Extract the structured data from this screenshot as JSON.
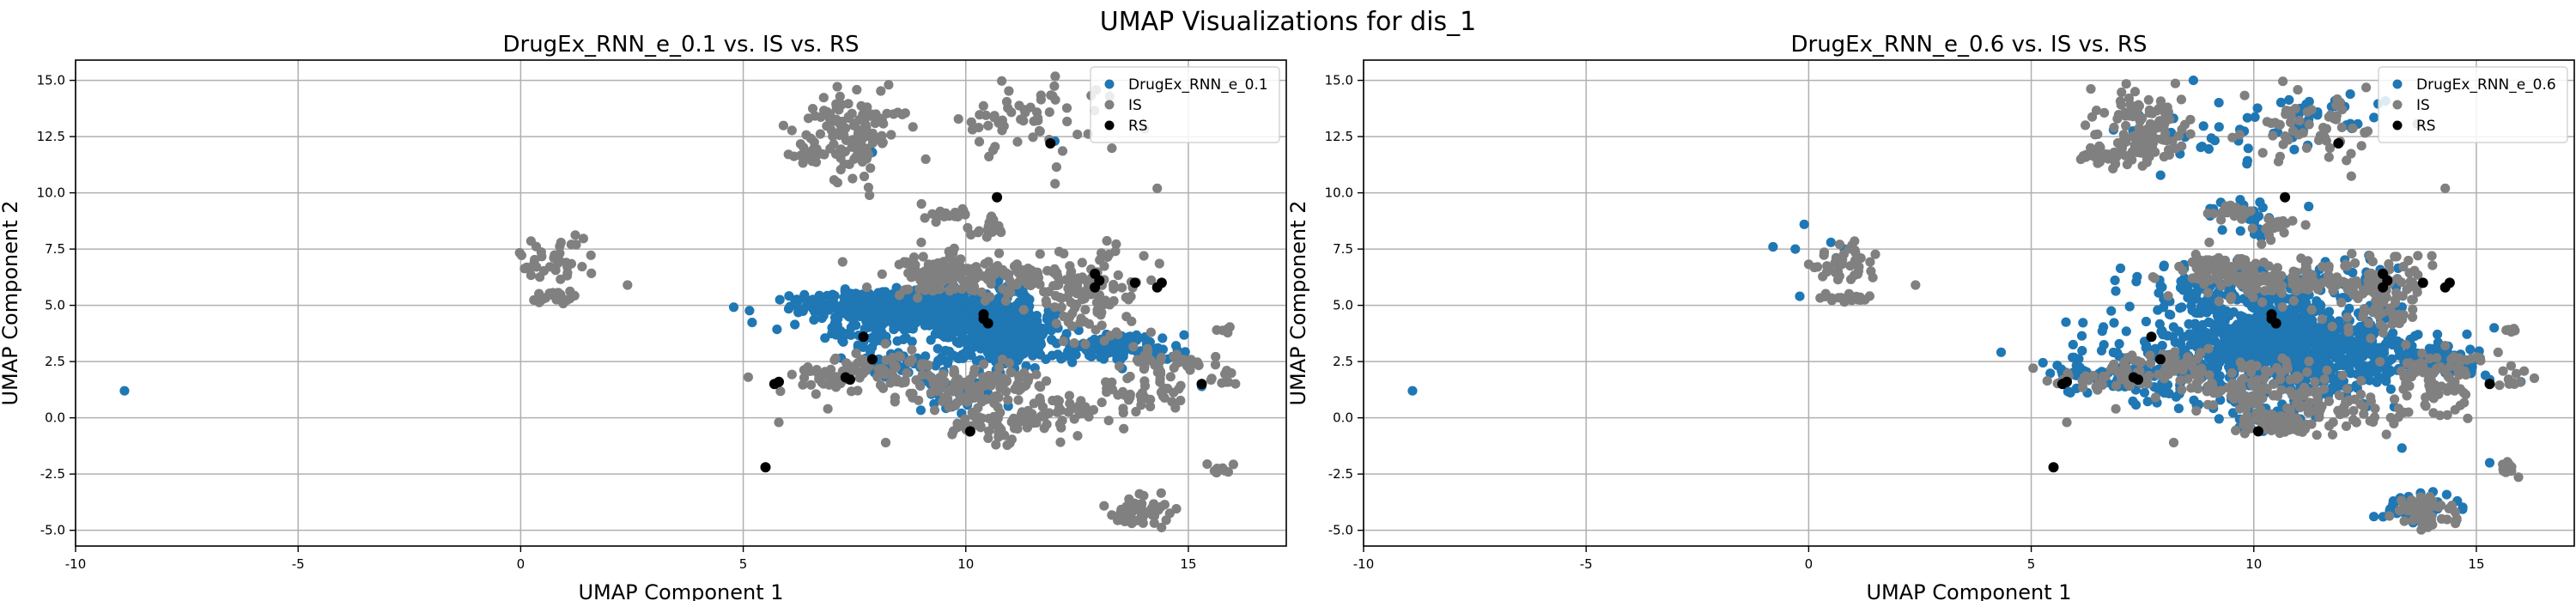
{
  "figure": {
    "suptitle": "UMAP Visualizations for dis_1"
  },
  "chart_data": [
    {
      "type": "scatter",
      "title": "DrugEx_RNN_e_0.1 vs. IS vs. RS",
      "xlabel": "UMAP Component 1",
      "ylabel": "UMAP Component 2",
      "xlim": [
        -10,
        17.2
      ],
      "ylim": [
        -5.7,
        15.9
      ],
      "xticks": [
        -10,
        -5,
        0,
        5,
        10,
        15
      ],
      "yticks": [
        -5.0,
        -2.5,
        0.0,
        2.5,
        5.0,
        7.5,
        10.0,
        12.5,
        15.0
      ],
      "grid": true,
      "legend_position": "top-right",
      "series": [
        {
          "name": "DrugEx_RNN_e_0.1",
          "color": "#1f77b4",
          "clusters": [
            {
              "cx": 10.8,
              "cy": 3.9,
              "sx": 0.55,
              "sy": 0.75,
              "n": 500
            },
            {
              "cx": 9.3,
              "cy": 4.6,
              "sx": 0.9,
              "sy": 0.55,
              "n": 260
            },
            {
              "cx": 8.3,
              "cy": 5.1,
              "sx": 1.1,
              "sy": 0.35,
              "n": 200
            },
            {
              "cx": 7.5,
              "cy": 4.8,
              "sx": 1.1,
              "sy": 0.45,
              "n": 90
            },
            {
              "cx": 13.3,
              "cy": 3.1,
              "sx": 0.75,
              "sy": 0.35,
              "n": 110
            },
            {
              "cx": 8.7,
              "cy": 2.4,
              "sx": 0.7,
              "sy": 0.3,
              "n": 50
            },
            {
              "cx": 9.9,
              "cy": 1.0,
              "sx": 0.6,
              "sy": 0.4,
              "n": 30
            },
            {
              "cx": 7.6,
              "cy": 3.5,
              "sx": 0.4,
              "sy": 0.3,
              "n": 30
            }
          ],
          "points": [
            [
              -8.9,
              1.2
            ],
            [
              7.6,
              11.7
            ],
            [
              7.9,
              11.8
            ],
            [
              12.0,
              12.3
            ],
            [
              15.3,
              1.4
            ]
          ]
        },
        {
          "name": "IS",
          "color": "#808080",
          "clusters": [
            {
              "cx": 7.5,
              "cy": 12.8,
              "sx": 0.55,
              "sy": 0.9,
              "n": 120
            },
            {
              "cx": 11.5,
              "cy": 13.2,
              "sx": 0.9,
              "sy": 0.8,
              "n": 60
            },
            {
              "cx": 6.5,
              "cy": 11.7,
              "sx": 0.3,
              "sy": 0.2,
              "n": 20
            },
            {
              "cx": 9.6,
              "cy": 9.1,
              "sx": 0.3,
              "sy": 0.2,
              "n": 20
            },
            {
              "cx": 10.5,
              "cy": 8.5,
              "sx": 0.25,
              "sy": 0.3,
              "n": 18
            },
            {
              "cx": 0.8,
              "cy": 6.9,
              "sx": 0.4,
              "sy": 0.5,
              "n": 40
            },
            {
              "cx": 0.8,
              "cy": 5.4,
              "sx": 0.3,
              "sy": 0.15,
              "n": 18
            },
            {
              "cx": 9.2,
              "cy": 6.5,
              "sx": 0.4,
              "sy": 0.35,
              "n": 70
            },
            {
              "cx": 10.8,
              "cy": 6.2,
              "sx": 1.3,
              "sy": 0.45,
              "n": 140
            },
            {
              "cx": 12.8,
              "cy": 5.3,
              "sx": 0.5,
              "sy": 1.0,
              "n": 90
            },
            {
              "cx": 6.9,
              "cy": 1.8,
              "sx": 0.7,
              "sy": 0.35,
              "n": 50
            },
            {
              "cx": 10.2,
              "cy": 1.3,
              "sx": 0.9,
              "sy": 0.55,
              "n": 120
            },
            {
              "cx": 10.6,
              "cy": -0.3,
              "sx": 0.5,
              "sy": 0.3,
              "n": 60
            },
            {
              "cx": 12.0,
              "cy": 0.3,
              "sx": 0.6,
              "sy": 0.5,
              "n": 40
            },
            {
              "cx": 14.0,
              "cy": 1.3,
              "sx": 0.5,
              "sy": 0.6,
              "n": 50
            },
            {
              "cx": 14.4,
              "cy": 2.5,
              "sx": 0.5,
              "sy": 0.3,
              "n": 30
            },
            {
              "cx": 13.9,
              "cy": -4.2,
              "sx": 0.35,
              "sy": 0.3,
              "n": 60
            },
            {
              "cx": 15.7,
              "cy": -2.3,
              "sx": 0.15,
              "sy": 0.15,
              "n": 10
            },
            {
              "cx": 15.8,
              "cy": 1.8,
              "sx": 0.2,
              "sy": 0.3,
              "n": 10
            },
            {
              "cx": 15.8,
              "cy": 3.9,
              "sx": 0.1,
              "sy": 0.1,
              "n": 5
            },
            {
              "cx": 8.2,
              "cy": 2.3,
              "sx": 0.5,
              "sy": 0.4,
              "n": 40
            }
          ],
          "points": [
            [
              2.4,
              5.9
            ],
            [
              14.3,
              10.2
            ],
            [
              8.2,
              -1.1
            ],
            [
              14.0,
              7.2
            ],
            [
              6.9,
              0.4
            ],
            [
              5.8,
              -0.2
            ],
            [
              9.0,
              7.8
            ],
            [
              11.3,
              4.8
            ],
            [
              12.2,
              7.3
            ],
            [
              10.9,
              5.2
            ]
          ]
        },
        {
          "name": "RS",
          "color": "#000000",
          "points": [
            [
              11.9,
              12.2
            ],
            [
              10.7,
              9.8
            ],
            [
              12.9,
              6.4
            ],
            [
              13.0,
              6.1
            ],
            [
              12.9,
              5.8
            ],
            [
              13.8,
              6.0
            ],
            [
              14.4,
              6.0
            ],
            [
              14.3,
              5.8
            ],
            [
              10.4,
              4.6
            ],
            [
              10.5,
              4.2
            ],
            [
              7.7,
              3.6
            ],
            [
              7.9,
              2.6
            ],
            [
              7.3,
              1.8
            ],
            [
              7.4,
              1.7
            ],
            [
              5.7,
              1.5
            ],
            [
              5.8,
              1.6
            ],
            [
              10.1,
              -0.6
            ],
            [
              5.5,
              -2.2
            ],
            [
              15.3,
              1.5
            ],
            [
              10.4,
              4.4
            ]
          ]
        }
      ]
    },
    {
      "type": "scatter",
      "title": "DrugEx_RNN_e_0.6 vs. IS vs. RS",
      "xlabel": "UMAP Component 1",
      "ylabel": "UMAP Component 2",
      "xlim": [
        -10,
        17.2
      ],
      "ylim": [
        -5.7,
        15.9
      ],
      "xticks": [
        -10,
        -5,
        0,
        5,
        10,
        15
      ],
      "yticks": [
        -5.0,
        -2.5,
        0.0,
        2.5,
        5.0,
        7.5,
        10.0,
        12.5,
        15.0
      ],
      "grid": true,
      "legend_position": "top-right",
      "series": [
        {
          "name": "DrugEx_RNN_e_0.6",
          "color": "#1f77b4",
          "clusters": [
            {
              "cx": 10.6,
              "cy": 3.3,
              "sx": 0.9,
              "sy": 1.0,
              "n": 650
            },
            {
              "cx": 9.0,
              "cy": 3.0,
              "sx": 1.2,
              "sy": 1.1,
              "n": 250
            },
            {
              "cx": 12.2,
              "cy": 3.0,
              "sx": 0.8,
              "sy": 0.9,
              "n": 170
            },
            {
              "cx": 13.8,
              "cy": 2.6,
              "sx": 0.6,
              "sy": 0.4,
              "n": 80
            },
            {
              "cx": 7.2,
              "cy": 2.0,
              "sx": 0.9,
              "sy": 0.6,
              "n": 60
            },
            {
              "cx": 10.8,
              "cy": 6.0,
              "sx": 1.2,
              "sy": 0.5,
              "n": 80
            },
            {
              "cx": 8.7,
              "cy": 5.7,
              "sx": 0.8,
              "sy": 0.6,
              "n": 50
            },
            {
              "cx": 13.8,
              "cy": -3.9,
              "sx": 0.4,
              "sy": 0.35,
              "n": 40
            },
            {
              "cx": 9.0,
              "cy": 12.5,
              "sx": 0.9,
              "sy": 0.7,
              "n": 30
            },
            {
              "cx": 11.5,
              "cy": 13.2,
              "sx": 0.7,
              "sy": 0.7,
              "n": 30
            },
            {
              "cx": 9.8,
              "cy": 9.0,
              "sx": 0.5,
              "sy": 0.4,
              "n": 25
            },
            {
              "cx": 10.3,
              "cy": 0.2,
              "sx": 0.8,
              "sy": 0.5,
              "n": 40
            },
            {
              "cx": 6.3,
              "cy": 1.7,
              "sx": 0.5,
              "sy": 0.3,
              "n": 20
            }
          ],
          "points": [
            [
              -8.9,
              1.2
            ],
            [
              -0.8,
              7.6
            ],
            [
              -0.3,
              7.5
            ],
            [
              -0.1,
              8.6
            ],
            [
              -0.2,
              5.4
            ],
            [
              0.5,
              7.8
            ],
            [
              0.8,
              7.5
            ],
            [
              15.3,
              -2.0
            ],
            [
              15.4,
              4.0
            ],
            [
              15.3,
              1.7
            ],
            [
              14.6,
              2.6
            ],
            [
              16.0,
              1.6
            ]
          ]
        },
        {
          "name": "IS",
          "color": "#808080",
          "clusters": [
            {
              "cx": 7.5,
              "cy": 12.8,
              "sx": 0.55,
              "sy": 0.9,
              "n": 120
            },
            {
              "cx": 11.5,
              "cy": 13.2,
              "sx": 0.9,
              "sy": 0.8,
              "n": 60
            },
            {
              "cx": 6.5,
              "cy": 11.7,
              "sx": 0.3,
              "sy": 0.2,
              "n": 20
            },
            {
              "cx": 9.6,
              "cy": 9.1,
              "sx": 0.3,
              "sy": 0.2,
              "n": 20
            },
            {
              "cx": 10.5,
              "cy": 8.5,
              "sx": 0.25,
              "sy": 0.3,
              "n": 18
            },
            {
              "cx": 0.8,
              "cy": 6.9,
              "sx": 0.4,
              "sy": 0.5,
              "n": 40
            },
            {
              "cx": 0.8,
              "cy": 5.4,
              "sx": 0.3,
              "sy": 0.15,
              "n": 18
            },
            {
              "cx": 9.2,
              "cy": 6.5,
              "sx": 0.4,
              "sy": 0.35,
              "n": 70
            },
            {
              "cx": 10.8,
              "cy": 6.2,
              "sx": 1.3,
              "sy": 0.45,
              "n": 140
            },
            {
              "cx": 12.8,
              "cy": 5.3,
              "sx": 0.5,
              "sy": 1.0,
              "n": 90
            },
            {
              "cx": 6.9,
              "cy": 1.8,
              "sx": 0.7,
              "sy": 0.35,
              "n": 50
            },
            {
              "cx": 10.2,
              "cy": 1.3,
              "sx": 0.9,
              "sy": 0.55,
              "n": 120
            },
            {
              "cx": 10.6,
              "cy": -0.3,
              "sx": 0.5,
              "sy": 0.3,
              "n": 60
            },
            {
              "cx": 12.0,
              "cy": 0.3,
              "sx": 0.6,
              "sy": 0.5,
              "n": 40
            },
            {
              "cx": 14.0,
              "cy": 1.3,
              "sx": 0.5,
              "sy": 0.6,
              "n": 50
            },
            {
              "cx": 14.4,
              "cy": 2.5,
              "sx": 0.5,
              "sy": 0.3,
              "n": 30
            },
            {
              "cx": 13.9,
              "cy": -4.2,
              "sx": 0.35,
              "sy": 0.3,
              "n": 60
            },
            {
              "cx": 15.7,
              "cy": -2.3,
              "sx": 0.15,
              "sy": 0.15,
              "n": 10
            },
            {
              "cx": 15.8,
              "cy": 1.8,
              "sx": 0.2,
              "sy": 0.3,
              "n": 10
            },
            {
              "cx": 15.8,
              "cy": 3.9,
              "sx": 0.1,
              "sy": 0.1,
              "n": 5
            },
            {
              "cx": 8.2,
              "cy": 2.3,
              "sx": 0.5,
              "sy": 0.4,
              "n": 40
            }
          ],
          "points": [
            [
              2.4,
              5.9
            ],
            [
              14.3,
              10.2
            ],
            [
              8.2,
              -1.1
            ],
            [
              14.0,
              7.2
            ],
            [
              6.9,
              0.4
            ],
            [
              5.8,
              -0.2
            ],
            [
              9.0,
              7.8
            ],
            [
              11.3,
              4.8
            ],
            [
              12.2,
              7.3
            ],
            [
              10.9,
              5.2
            ]
          ]
        },
        {
          "name": "RS",
          "color": "#000000",
          "points": [
            [
              11.9,
              12.2
            ],
            [
              10.7,
              9.8
            ],
            [
              12.9,
              6.4
            ],
            [
              13.0,
              6.1
            ],
            [
              12.9,
              5.8
            ],
            [
              13.8,
              6.0
            ],
            [
              14.4,
              6.0
            ],
            [
              14.3,
              5.8
            ],
            [
              10.4,
              4.6
            ],
            [
              10.5,
              4.2
            ],
            [
              7.7,
              3.6
            ],
            [
              7.9,
              2.6
            ],
            [
              7.3,
              1.8
            ],
            [
              7.4,
              1.7
            ],
            [
              5.7,
              1.5
            ],
            [
              5.8,
              1.6
            ],
            [
              10.1,
              -0.6
            ],
            [
              5.5,
              -2.2
            ],
            [
              15.3,
              1.5
            ],
            [
              10.4,
              4.4
            ]
          ]
        }
      ]
    }
  ]
}
